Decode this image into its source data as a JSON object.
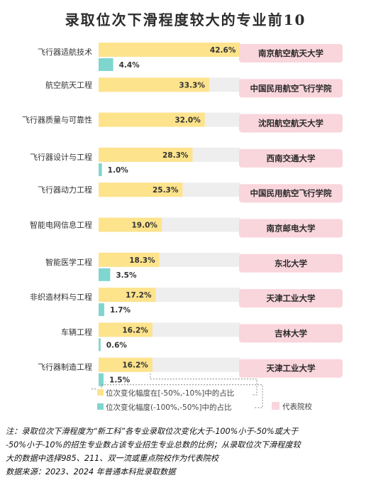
{
  "title": "录取位次下滑程度较大的专业前10",
  "chart_data": {
    "type": "bar",
    "orientation": "horizontal",
    "title": "录取位次下滑程度较大的专业前10",
    "xlim": [
      0,
      100
    ],
    "categories": [
      "飞行器适航技术",
      "航空航天工程",
      "飞行器质量与可靠性",
      "飞行器设计与工程",
      "飞行器动力工程",
      "智能电网信息工程",
      "智能医学工程",
      "非织造材料与工程",
      "车辆工程",
      "飞行器制造工程"
    ],
    "series": [
      {
        "name": "位次变化幅度在[-50%,-10%]中的占比",
        "color": "#fde38c",
        "values": [
          42.6,
          33.3,
          32.0,
          28.3,
          25.3,
          19.0,
          18.3,
          17.2,
          16.2,
          16.2
        ],
        "labels": [
          "42.6%",
          "33.3%",
          "32.0%",
          "28.3%",
          "25.3%",
          "19.0%",
          "18.3%",
          "17.2%",
          "16.2%",
          "16.2%"
        ]
      },
      {
        "name": "位次变化幅度(-100%,-50%]中的占比",
        "color": "#7fd6cf",
        "values": [
          4.4,
          null,
          null,
          1.0,
          null,
          null,
          3.5,
          1.7,
          0.6,
          1.5
        ],
        "labels": [
          "4.4%",
          null,
          null,
          "1.0%",
          null,
          null,
          "3.5%",
          "1.7%",
          "0.6%",
          "1.5%"
        ]
      }
    ],
    "representative_schools": [
      "南京航空航天大学",
      "中国民用航空飞行学院",
      "沈阳航空航天大学",
      "西南交通大学",
      "中国民用航空飞行学院",
      "南京邮电大学",
      "东北大学",
      "天津工业大学",
      "吉林大学",
      "天津工业大学"
    ],
    "legend": {
      "school_label": "代表院校",
      "position": "bottom"
    },
    "colors": {
      "track": "#eeeeee",
      "school_box": "#f9d5dc",
      "bar_yellow": "#fde38c",
      "bar_teal": "#7fd6cf"
    }
  },
  "note": {
    "lines": [
      "注：录取位次下滑程度为“新工科”各专业录取位次变化大于-100%小于-50%或大于",
      "-50%小于-10%的招生专业数占该专业招生专业总数的比例；从录取位次下滑程度较",
      "大的数据中选择985、211、双一流或重点院校作为代表院校",
      "数据来源：2023、2024 年普通本科批录取数据"
    ]
  }
}
